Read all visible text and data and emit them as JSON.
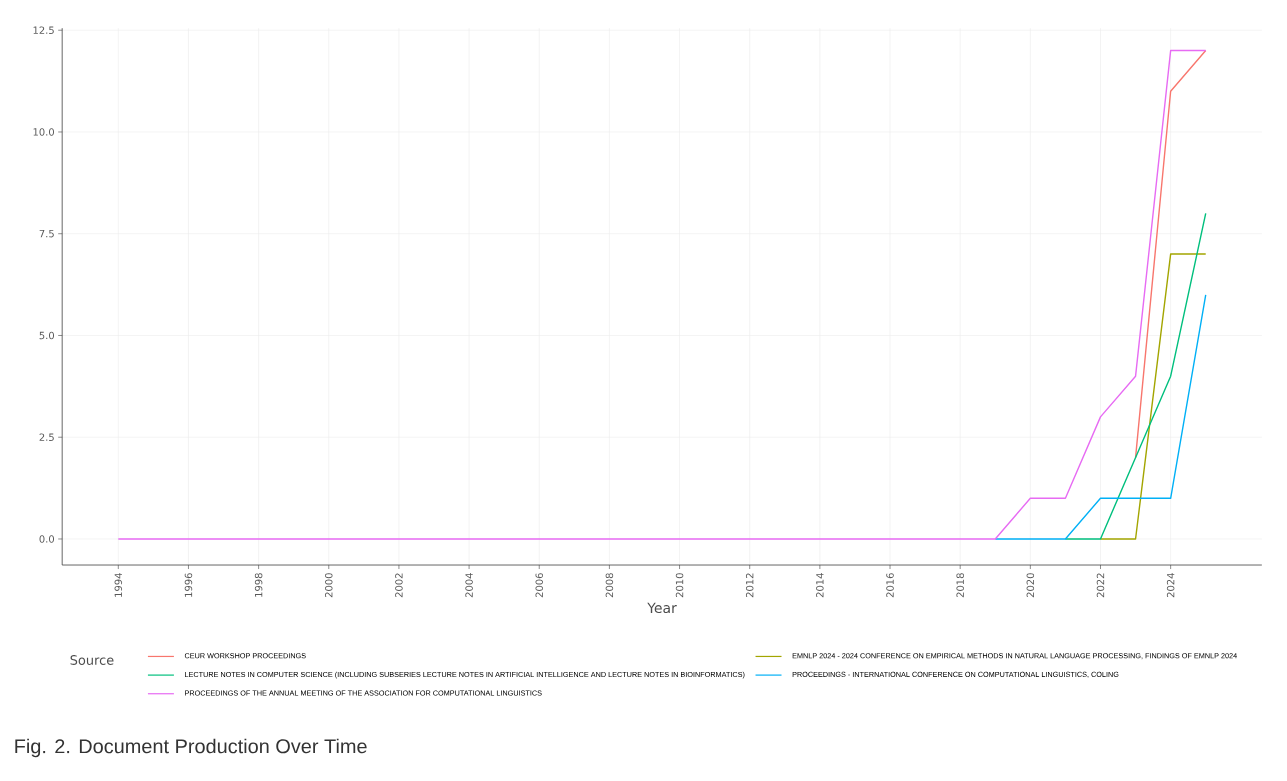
{
  "chart_data": {
    "type": "line",
    "xlabel": "Year",
    "legend_title": "Source",
    "annotations": [
      "Fig. 2.  Document Production Over Time"
    ],
    "x": [
      1994,
      2019,
      2020,
      2021,
      2022,
      2023,
      2024,
      2025
    ],
    "series": [
      {
        "name": "CEUR WORKSHOP PROCEEDINGS",
        "color": "#f8766d",
        "values": [
          null,
          null,
          null,
          null,
          null,
          2,
          11,
          12
        ]
      },
      {
        "name": "EMNLP 2024 - 2024 CONFERENCE ON EMPIRICAL METHODS IN NATURAL LANGUAGE PROCESSING, FINDINGS OF EMNLP 2024",
        "color": "#a3a500",
        "values": [
          null,
          null,
          null,
          null,
          0,
          0,
          7,
          7
        ]
      },
      {
        "name": "LECTURE NOTES IN COMPUTER SCIENCE (INCLUDING SUBSERIES LECTURE NOTES IN ARTIFICIAL INTELLIGENCE AND LECTURE NOTES IN BIOINFORMATICS)",
        "color": "#00bf7d",
        "values": [
          null,
          null,
          null,
          0,
          0,
          2,
          4,
          8
        ]
      },
      {
        "name": "PROCEEDINGS - INTERNATIONAL CONFERENCE ON COMPUTATIONAL LINGUISTICS, COLING",
        "color": "#00b0f6",
        "values": [
          null,
          0,
          0,
          0,
          1,
          1,
          1,
          6
        ]
      },
      {
        "name": "PROCEEDINGS OF THE ANNUAL MEETING OF THE ASSOCIATION FOR COMPUTATIONAL LINGUISTICS",
        "color": "#e76bf3",
        "values": [
          0,
          0,
          1,
          1,
          3,
          4,
          12,
          12
        ]
      }
    ],
    "xlim": [
      1992.4,
      2026.6
    ],
    "ylim": [
      -0.64,
      12.55
    ],
    "xticks": [
      1994,
      1996,
      1998,
      2000,
      2002,
      2004,
      2006,
      2008,
      2010,
      2012,
      2014,
      2016,
      2018,
      2020,
      2022,
      2024
    ],
    "yticks": [
      {
        "value": 0,
        "label": "0.0"
      },
      {
        "value": 2.5,
        "label": "2.5"
      },
      {
        "value": 5,
        "label": "5.0"
      },
      {
        "value": 7.5,
        "label": "7.5"
      },
      {
        "value": 10,
        "label": "10.0"
      },
      {
        "value": 12.5,
        "label": "12.5"
      }
    ],
    "grid": true,
    "legend": "bottom",
    "marker": "none",
    "line_style": "solid"
  }
}
